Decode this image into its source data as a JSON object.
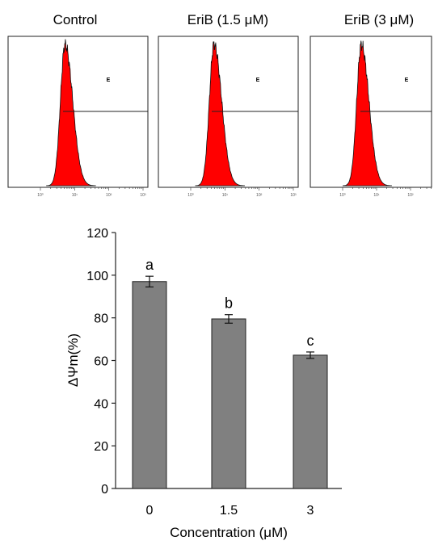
{
  "chart_data": [
    {
      "type": "histogram",
      "title": "Control",
      "gate_label": "E",
      "x_scale": "log",
      "x_tick_labels": [
        "10⁰",
        "10¹",
        "10²",
        "10³"
      ],
      "peak_decade": 0.72,
      "peak_width": 0.18,
      "fill": "#ff0000"
    },
    {
      "type": "histogram",
      "title": "EriB (1.5 μM)",
      "gate_label": "E",
      "x_scale": "log",
      "x_tick_labels": [
        "10⁰",
        "10¹",
        "10²",
        "10³"
      ],
      "peak_decade": 0.68,
      "peak_width": 0.18,
      "fill": "#ff0000"
    },
    {
      "type": "histogram",
      "title": "EriB (3 μM)",
      "gate_label": "E",
      "x_scale": "log",
      "x_tick_labels": [
        "10⁰",
        "10¹",
        "10²",
        "10³"
      ],
      "peak_decade": 0.55,
      "peak_width": 0.18,
      "fill": "#ff0000"
    },
    {
      "type": "bar",
      "categories": [
        "0",
        "1.5",
        "3"
      ],
      "values": [
        97,
        79.5,
        62.5
      ],
      "errors": [
        2.5,
        2.0,
        1.5
      ],
      "significance": [
        "a",
        "b",
        "c"
      ],
      "xlabel": "Concentration (μM)",
      "ylabel": "ΔΨm(%)",
      "ylim": [
        0,
        120
      ],
      "yticks": [
        0,
        20,
        40,
        60,
        80,
        100,
        120
      ],
      "bar_color": "#808080"
    }
  ]
}
